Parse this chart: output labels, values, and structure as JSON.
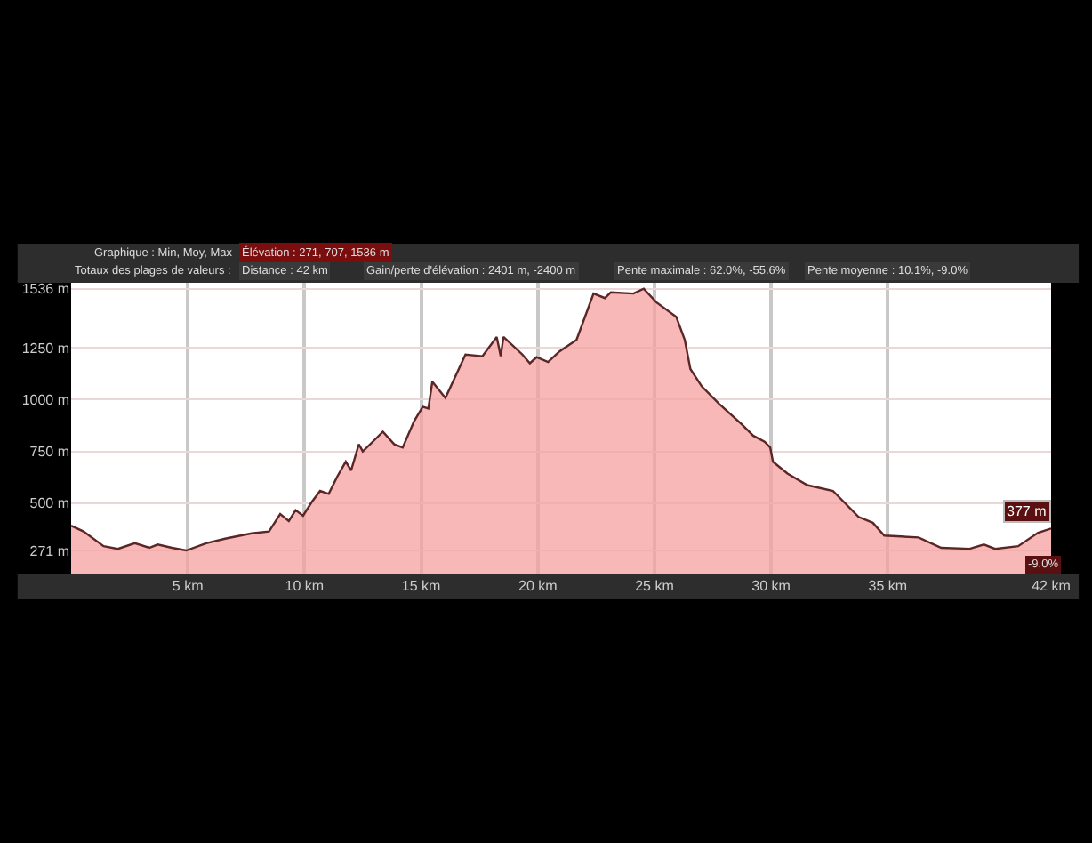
{
  "chart_data": {
    "type": "area",
    "annotations": [
      "Graphique : Min, Moy, Max",
      "Élévation : 271, 707, 1536 m",
      "Totaux des plages de valeurs :",
      "Distance : 42 km",
      "Gain/perte d'élévation : 2401 m, -2400 m",
      "Pente maximale : 62.0%, -55.6%",
      "Pente moyenne : 10.1%, -9.0%",
      {
        "text": "377 m",
        "x": 42,
        "y": 377
      },
      "-9.0%"
    ],
    "x": [
      0,
      0.53,
      1.39,
      2.0,
      2.73,
      3.35,
      3.71,
      4.32,
      4.93,
      5.79,
      6.64,
      7.74,
      8.48,
      8.96,
      9.33,
      9.62,
      9.94,
      10.3,
      10.67,
      11.04,
      11.41,
      11.77,
      12.0,
      12.33,
      12.5,
      13.11,
      13.36,
      13.85,
      14.21,
      14.7,
      15.07,
      15.31,
      15.48,
      16.04,
      16.9,
      17.63,
      18.24,
      18.41,
      18.53,
      19.34,
      19.66,
      19.95,
      20.44,
      20.93,
      21.66,
      22.39,
      22.88,
      23.13,
      24.1,
      24.54,
      25.08,
      25.93,
      26.3,
      26.54,
      27.03,
      27.77,
      28.74,
      29.23,
      29.72,
      29.96,
      30.08,
      30.7,
      31.55,
      32.65,
      33.75,
      34.36,
      34.85,
      36.32,
      37.29,
      38.51,
      39.12,
      39.6,
      40.59,
      41.44,
      42
    ],
    "series": [
      {
        "color": "#5a2626",
        "values": [
          391,
          363,
          292,
          279,
          306,
          284,
          300,
          284,
          271,
          306,
          329,
          354,
          363,
          447,
          413,
          466,
          439,
          503,
          559,
          545,
          629,
          700,
          658,
          784,
          750,
          817,
          845,
          784,
          769,
          896,
          966,
          957,
          1087,
          1008,
          1218,
          1210,
          1303,
          1210,
          1303,
          1218,
          1176,
          1205,
          1182,
          1233,
          1289,
          1513,
          1491,
          1519,
          1513,
          1536,
          1471,
          1401,
          1289,
          1148,
          1064,
          980,
          881,
          826,
          797,
          769,
          700,
          643,
          587,
          559,
          433,
          405,
          343,
          334,
          284,
          279,
          300,
          279,
          292,
          357,
          377
        ]
      }
    ],
    "xlim": [
      0,
      42
    ],
    "ylim": [
      155,
      1565
    ],
    "xticks": [
      {
        "value": 5,
        "label": "5 km"
      },
      {
        "value": 10,
        "label": "10 km"
      },
      {
        "value": 15,
        "label": "15 km"
      },
      {
        "value": 20,
        "label": "20 km"
      },
      {
        "value": 25,
        "label": "25 km"
      },
      {
        "value": 30,
        "label": "30 km"
      },
      {
        "value": 35,
        "label": "35 km"
      },
      {
        "value": 42,
        "label": "42 km"
      }
    ],
    "yticks": [
      {
        "value": 271,
        "label": "271 m"
      },
      {
        "value": 500,
        "label": "500 m"
      },
      {
        "value": 750,
        "label": "750 m"
      },
      {
        "value": 1000,
        "label": "1000 m"
      },
      {
        "value": 1250,
        "label": "1250 m"
      },
      {
        "value": 1536,
        "label": "1536 m"
      }
    ],
    "grid": true,
    "legend": false
  }
}
